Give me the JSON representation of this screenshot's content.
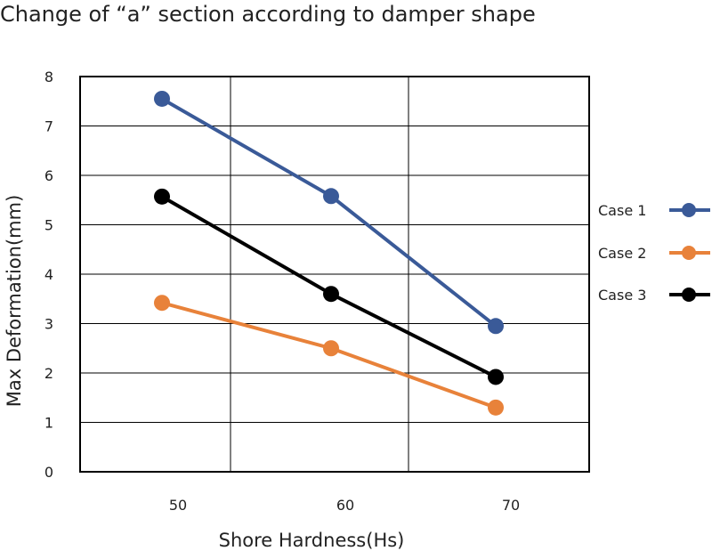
{
  "chart_data": {
    "type": "line",
    "title": "Change of “a” section according to damper shape",
    "xlabel": "Shore Hardness(Hs)",
    "ylabel": "Max Deformation(mm)",
    "x": [
      50,
      60,
      70
    ],
    "x_tick_labels": [
      "50",
      "60",
      "70"
    ],
    "ylim": [
      0,
      8
    ],
    "y_ticks": [
      0,
      1,
      2,
      3,
      4,
      5,
      6,
      7,
      8
    ],
    "grid": true,
    "legend_position": "right",
    "series": [
      {
        "name": "Case 1",
        "color": "#3a5a98",
        "values": [
          7.55,
          5.58,
          2.95
        ]
      },
      {
        "name": "Case 2",
        "color": "#e8823a",
        "values": [
          3.42,
          2.5,
          1.3
        ]
      },
      {
        "name": "Case 3",
        "color": "#000000",
        "values": [
          5.57,
          3.6,
          1.92
        ]
      }
    ]
  }
}
